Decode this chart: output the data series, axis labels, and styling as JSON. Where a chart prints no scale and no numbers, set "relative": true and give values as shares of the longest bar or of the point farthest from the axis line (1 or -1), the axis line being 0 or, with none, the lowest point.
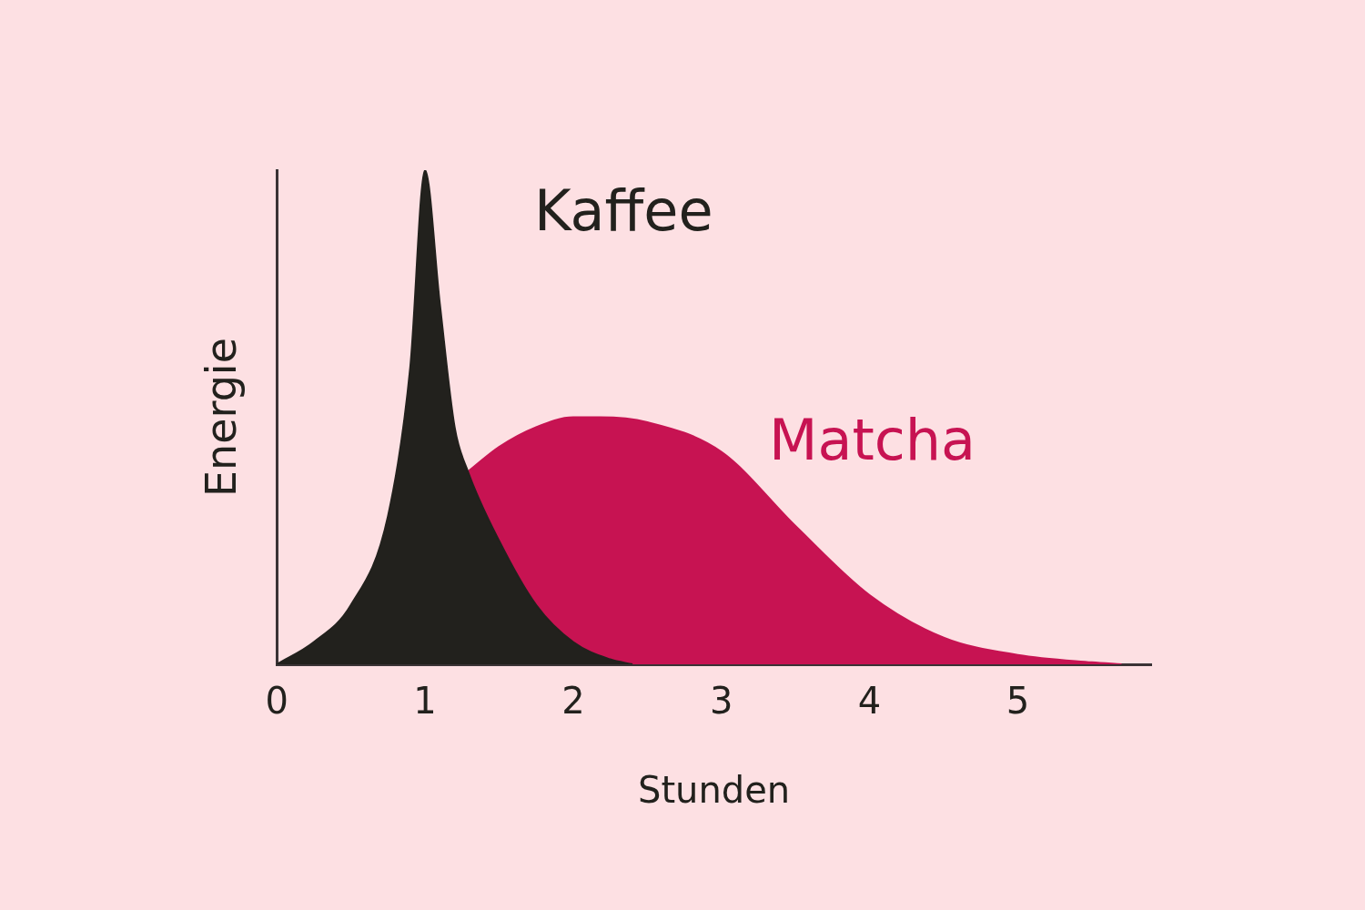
{
  "chart_data": {
    "type": "area",
    "relative": true,
    "xlabel": "Stunden",
    "ylabel": "Energie",
    "tick_labels": "x",
    "xlim": [
      0,
      5.9
    ],
    "xticks": [
      0,
      1,
      2,
      3,
      4,
      5
    ],
    "series": [
      {
        "name": "Kaffee",
        "color": "#22211d",
        "x": [
          0,
          0.25,
          0.5,
          0.75,
          0.9,
          1,
          1.1,
          1.2,
          1.29,
          1.5,
          1.75,
          2,
          2.25,
          2.4
        ],
        "values": [
          0,
          0.045,
          0.12,
          0.3,
          0.6,
          1,
          0.73,
          0.48,
          0.39,
          0.25,
          0.12,
          0.045,
          0.01,
          0
        ]
      },
      {
        "name": "Matcha",
        "color": "#c71352",
        "x": [
          1.29,
          1.5,
          1.75,
          2,
          2.18,
          2.5,
          3,
          3.5,
          4,
          4.5,
          5,
          5.5,
          5.7
        ],
        "values": [
          0.39,
          0.44,
          0.48,
          0.5,
          0.5,
          0.49,
          0.43,
          0.28,
          0.14,
          0.054,
          0.019,
          0.004,
          0
        ]
      }
    ]
  }
}
